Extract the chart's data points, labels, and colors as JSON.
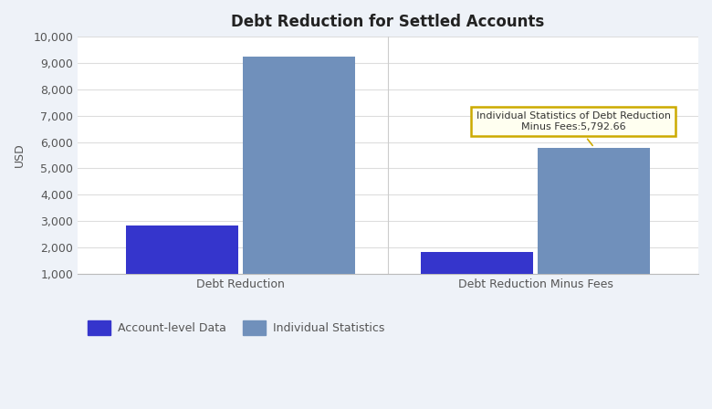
{
  "title": "Debt Reduction for Settled Accounts",
  "categories": [
    "Debt Reduction",
    "Debt Reduction Minus Fees"
  ],
  "account_level_values": [
    2820,
    1820
  ],
  "individual_stats_values": [
    9250,
    5792.66
  ],
  "account_level_color": "#3535cc",
  "individual_stats_color": "#7090bb",
  "ylabel": "USD",
  "ylim_min": 1000,
  "ylim_max": 10000,
  "yticks": [
    1000,
    2000,
    3000,
    4000,
    5000,
    6000,
    7000,
    8000,
    9000,
    10000
  ],
  "ytick_labels": [
    "1,000",
    "2,000",
    "3,000",
    "4,000",
    "5,000",
    "6,000",
    "7,000",
    "8,000",
    "9,000",
    "10,000"
  ],
  "legend_labels": [
    "Account-level Data",
    "Individual Statistics"
  ],
  "tooltip_text": "Individual Statistics of Debt Reduction\nMinus Fees:5,792.66",
  "bar_width": 0.38,
  "background_color": "#eef2f8",
  "plot_bg_color": "#ffffff",
  "title_fontsize": 12,
  "axis_label_fontsize": 9,
  "tick_fontsize": 9,
  "group_positions": [
    0.25,
    0.75
  ]
}
